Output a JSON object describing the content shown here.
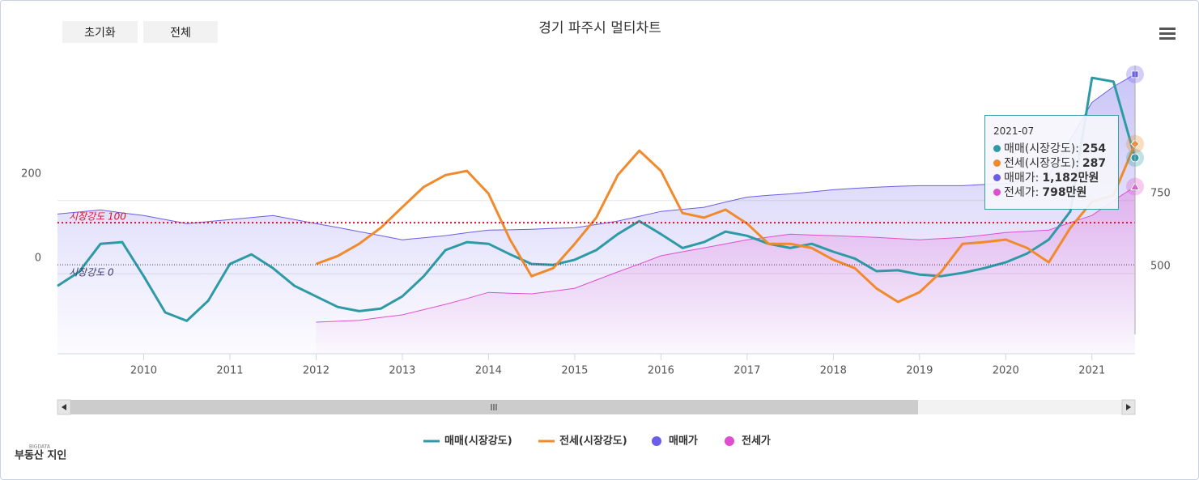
{
  "buttons": [
    "초기화",
    "전체"
  ],
  "logo": {
    "tag": "BIGDATA",
    "name": "부동산 지인"
  },
  "chart_data": {
    "type": "line",
    "title": "경기 파주시 멀티차트",
    "x": [
      "2009-01",
      "2009-04",
      "2009-07",
      "2009-10",
      "2010-01",
      "2010-04",
      "2010-07",
      "2010-10",
      "2011-01",
      "2011-04",
      "2011-07",
      "2011-10",
      "2012-01",
      "2012-04",
      "2012-07",
      "2012-10",
      "2013-01",
      "2013-04",
      "2013-07",
      "2013-10",
      "2014-01",
      "2014-04",
      "2014-07",
      "2014-10",
      "2015-01",
      "2015-04",
      "2015-07",
      "2015-10",
      "2016-01",
      "2016-04",
      "2016-07",
      "2016-10",
      "2017-01",
      "2017-04",
      "2017-07",
      "2017-10",
      "2018-01",
      "2018-04",
      "2018-07",
      "2018-10",
      "2019-01",
      "2019-04",
      "2019-07",
      "2019-10",
      "2020-01",
      "2020-04",
      "2020-07",
      "2020-10",
      "2021-01",
      "2021-04",
      "2021-07"
    ],
    "xlim": [
      2009,
      2021.5
    ],
    "xticks": [
      2010,
      2011,
      2012,
      2013,
      2014,
      2015,
      2016,
      2017,
      2018,
      2019,
      2020,
      2021
    ],
    "ylim": [
      -211,
      473
    ],
    "yticks": [
      0,
      200
    ],
    "y2lim": [
      226,
      1212
    ],
    "y2ticks": [
      500,
      750
    ],
    "plot_lines": [
      {
        "value": 100,
        "label": "시장강도 100",
        "color": "#e0102a"
      },
      {
        "value": 0,
        "label": "시장강도 0",
        "color": "#3a3a6a"
      }
    ],
    "series": [
      {
        "name": "매매(시장강도)",
        "color": "#2e9aa5",
        "marker": "circle",
        "values": [
          -50,
          -17,
          50,
          54,
          -27,
          -113,
          -133,
          -85,
          2,
          25,
          -8,
          -50,
          -75,
          -100,
          -110,
          -104,
          -75,
          -27,
          35,
          54,
          50,
          25,
          2,
          0,
          12,
          35,
          73,
          104,
          73,
          40,
          54,
          79,
          69,
          50,
          40,
          50,
          31,
          15,
          -15,
          -13,
          -23,
          -27,
          -19,
          -8,
          6,
          27,
          60,
          127,
          444,
          435,
          254
        ]
      },
      {
        "name": "전세(시장강도)",
        "color": "#f08a2c",
        "marker": "diamond",
        "values": [
          null,
          null,
          null,
          null,
          null,
          null,
          null,
          null,
          null,
          null,
          null,
          null,
          2,
          21,
          50,
          88,
          137,
          185,
          213,
          223,
          169,
          60,
          -27,
          -8,
          50,
          112,
          213,
          271,
          223,
          123,
          112,
          131,
          98,
          50,
          50,
          40,
          12,
          -8,
          -56,
          -88,
          -65,
          -17,
          50,
          54,
          60,
          40,
          6,
          88,
          150,
          165,
          287
        ]
      },
      {
        "name": "매매가",
        "color": "#6a5ee8",
        "axis": "y2",
        "area": true,
        "marker": "square",
        "values": [
          704,
          711,
          718,
          708,
          699,
          685,
          671,
          678,
          685,
          692,
          699,
          685,
          671,
          658,
          644,
          630,
          616,
          623,
          630,
          640,
          649,
          650,
          652,
          655,
          657,
          668,
          680,
          696,
          713,
          720,
          727,
          745,
          762,
          768,
          773,
          780,
          787,
          792,
          796,
          799,
          801,
          801,
          801,
          805,
          809,
          823,
          837,
          960,
          1086,
          1140,
          1182
        ]
      },
      {
        "name": "전세가",
        "color": "#e04ed0",
        "axis": "y2",
        "area": true,
        "marker": "triangle",
        "values": [
          null,
          null,
          null,
          null,
          null,
          null,
          null,
          null,
          null,
          null,
          null,
          null,
          334,
          337,
          340,
          350,
          359,
          377,
          395,
          415,
          436,
          433,
          431,
          440,
          450,
          478,
          506,
          533,
          561,
          575,
          588,
          602,
          616,
          625,
          635,
          632,
          630,
          627,
          624,
          620,
          616,
          620,
          624,
          632,
          641,
          645,
          649,
          675,
          699,
          750,
          798
        ]
      }
    ],
    "tooltip": {
      "rows": [
        {
          "label": "매매(시장강도):",
          "value": "254"
        },
        {
          "label": "전세(시장강도):",
          "value": "287"
        },
        {
          "label": "매매가:",
          "value": "1,182만원"
        },
        {
          "label": "전세가:",
          "value": "798만원"
        }
      ]
    }
  }
}
